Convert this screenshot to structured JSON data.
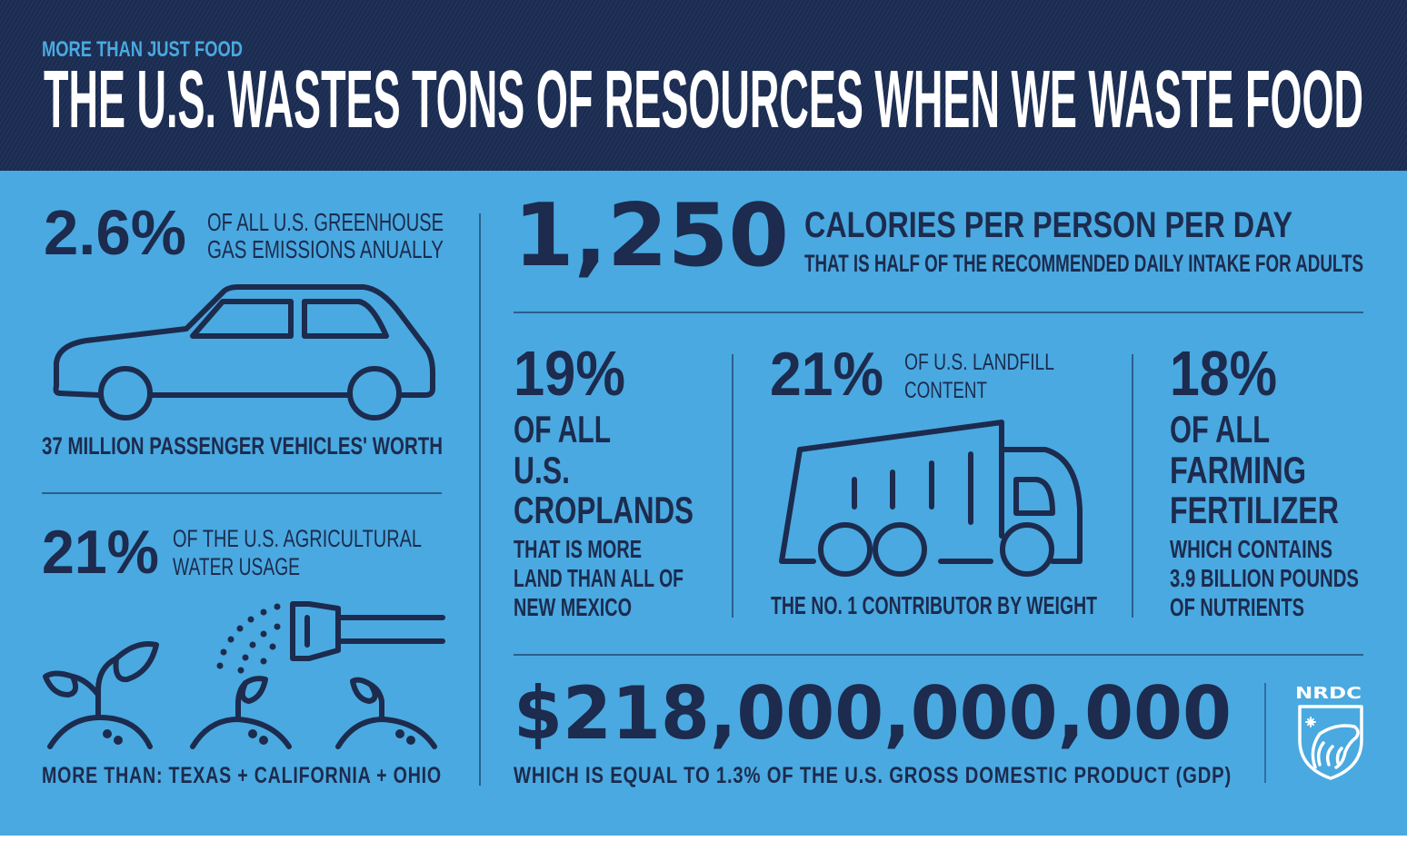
{
  "header": {
    "kicker": "MORE THAN JUST FOOD",
    "title": "THE U.S. WASTES TONS OF RESOURCES WHEN WE WASTE FOOD"
  },
  "emissions": {
    "stat": "2.6%",
    "desc": [
      "OF ALL U.S. GREENHOUSE",
      "GAS EMISSIONS ANUALLY"
    ],
    "icon": "car-icon",
    "caption": "37 MILLION PASSENGER VEHICLES' WORTH"
  },
  "water": {
    "stat": "21%",
    "desc": [
      "OF THE U.S. AGRICULTURAL",
      "WATER USAGE"
    ],
    "icon": "watering-plants-icon",
    "caption": "MORE THAN: TEXAS + CALIFORNIA + OHIO"
  },
  "calories": {
    "stat": "1,250",
    "headline": "CALORIES PER PERSON PER DAY",
    "desc": "THAT IS HALF OF THE RECOMMENDED DAILY INTAKE FOR ADULTS"
  },
  "croplands": {
    "stat": "19%",
    "headline": [
      "OF ALL",
      "U.S.",
      "CROPLANDS"
    ],
    "desc": [
      "THAT IS MORE",
      "LAND THAN ALL OF",
      "NEW MEXICO"
    ]
  },
  "landfill": {
    "stat": "21%",
    "desc": [
      "OF U.S. LANDFILL",
      "CONTENT"
    ],
    "icon": "garbage-truck-icon",
    "caption": "THE NO. 1 CONTRIBUTOR BY WEIGHT"
  },
  "fertilizer": {
    "stat": "18%",
    "headline": [
      "OF ALL",
      "FARMING",
      "FERTILIZER"
    ],
    "desc": [
      "WHICH CONTAINS",
      "3.9 BILLION POUNDS",
      "OF NUTRIENTS"
    ]
  },
  "money": {
    "stat": "$218,000,000,000",
    "desc": "WHICH IS EQUAL TO 1.3% OF THE U.S. GROSS DOMESTIC PRODUCT (GDP)"
  },
  "logo": {
    "text": "NRDC",
    "icon": "polar-bear-shield-icon"
  },
  "colors": {
    "navy": "#1b2c52",
    "text": "#1c2b4e",
    "sky": "#4aa9e0",
    "white": "#ffffff"
  }
}
